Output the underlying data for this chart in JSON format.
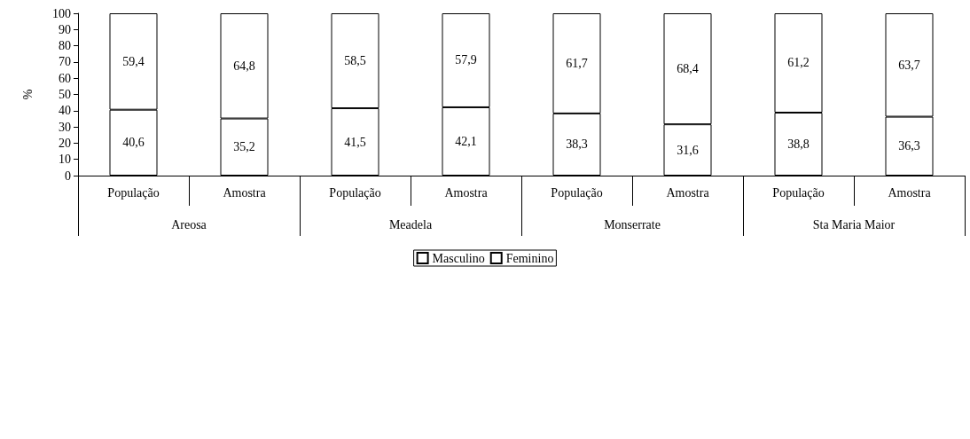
{
  "chart_data": {
    "type": "bar",
    "stacked": true,
    "ylabel": "%",
    "categories": [
      "População",
      "Amostra",
      "População",
      "Amostra",
      "População",
      "Amostra",
      "População",
      "Amostra"
    ],
    "annotations": [
      "Areosa",
      "Meadela",
      "Monserrate",
      "Sta Maria Maior"
    ],
    "series": [
      {
        "name": "Masculino",
        "color": "#ffffff",
        "values": [
          40.6,
          35.2,
          41.5,
          42.1,
          38.3,
          31.6,
          38.8,
          36.3
        ],
        "value_labels": [
          "40,6",
          "35,2",
          "41,5",
          "42,1",
          "38,3",
          "31,6",
          "38,8",
          "36,3"
        ]
      },
      {
        "name": "Feminino",
        "color": "#ffffff",
        "values": [
          59.4,
          64.8,
          58.5,
          57.9,
          61.7,
          68.4,
          61.2,
          63.7
        ],
        "value_labels": [
          "59,4",
          "64,8",
          "58,5",
          "57,9",
          "61,7",
          "68,4",
          "61,2",
          "63,7"
        ]
      }
    ],
    "ylim": [
      0,
      100
    ],
    "yticks": [
      0,
      10,
      20,
      30,
      40,
      50,
      60,
      70,
      80,
      90,
      100
    ],
    "grid": false,
    "legend": "bottom"
  }
}
